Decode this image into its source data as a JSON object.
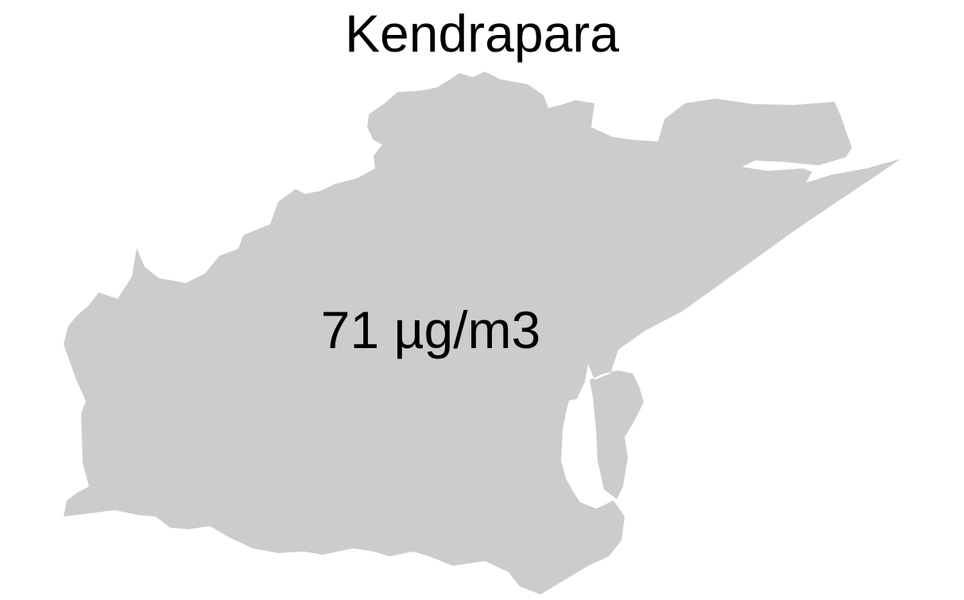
{
  "map": {
    "title": "Kendrapara",
    "value_label": "71 µg/m3",
    "region_fill": "#cccccc",
    "background": "#ffffff"
  }
}
